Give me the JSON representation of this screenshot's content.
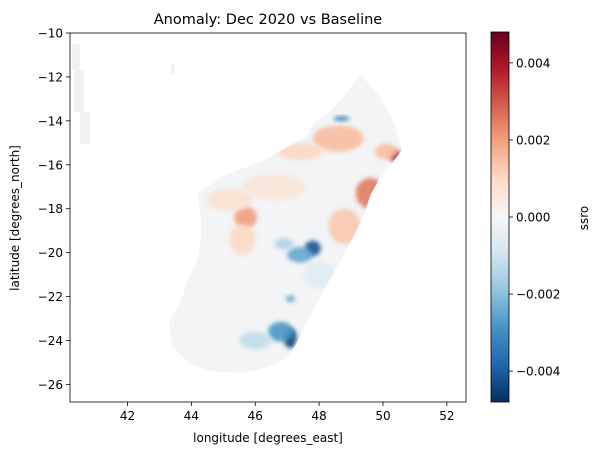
{
  "chart_data": {
    "type": "heatmap",
    "title": "Anomaly: Dec 2020 vs Baseline",
    "xlabel": "longitude [degrees_east]",
    "ylabel": "latitude [degrees_north]",
    "xlim": [
      40.2,
      52.6
    ],
    "ylim": [
      -26.8,
      -10.0
    ],
    "x_ticks": [
      "42",
      "44",
      "46",
      "48",
      "50",
      "52"
    ],
    "x_tick_values": [
      42,
      44,
      46,
      48,
      50,
      52
    ],
    "y_ticks": [
      "−10",
      "−12",
      "−14",
      "−16",
      "−18",
      "−20",
      "−22",
      "−24",
      "−26"
    ],
    "y_tick_values": [
      -10,
      -12,
      -14,
      -16,
      -18,
      -20,
      -22,
      -24,
      -26
    ],
    "colorbar": {
      "label": "ssro",
      "colormap": "RdBu_r",
      "range": [
        -0.0048,
        0.0048
      ],
      "ticks": [
        "0.004",
        "0.002",
        "0.000",
        "−0.002",
        "−0.004"
      ],
      "tick_values": [
        0.004,
        0.002,
        0.0,
        -0.002,
        -0.004
      ]
    },
    "grid": false,
    "land_outline_lonlat": [
      [
        49.3,
        -11.9
      ],
      [
        49.8,
        -12.7
      ],
      [
        50.3,
        -13.9
      ],
      [
        50.6,
        -15.3
      ],
      [
        50.3,
        -15.9
      ],
      [
        49.9,
        -16.6
      ],
      [
        49.6,
        -17.4
      ],
      [
        49.4,
        -18.3
      ],
      [
        49.1,
        -19.2
      ],
      [
        48.7,
        -20.3
      ],
      [
        48.3,
        -21.3
      ],
      [
        47.9,
        -22.4
      ],
      [
        47.6,
        -23.2
      ],
      [
        47.3,
        -24.1
      ],
      [
        47.0,
        -24.8
      ],
      [
        46.4,
        -25.2
      ],
      [
        45.6,
        -25.5
      ],
      [
        44.6,
        -25.4
      ],
      [
        44.0,
        -25.1
      ],
      [
        43.4,
        -24.3
      ],
      [
        43.3,
        -23.2
      ],
      [
        43.7,
        -22.1
      ],
      [
        43.9,
        -21.2
      ],
      [
        44.2,
        -20.3
      ],
      [
        44.3,
        -19.3
      ],
      [
        44.3,
        -18.4
      ],
      [
        44.2,
        -17.3
      ],
      [
        45.0,
        -16.5
      ],
      [
        46.1,
        -15.9
      ],
      [
        47.0,
        -15.2
      ],
      [
        47.6,
        -14.7
      ],
      [
        47.9,
        -14.0
      ],
      [
        48.4,
        -13.5
      ],
      [
        48.7,
        -13.0
      ]
    ],
    "anomaly_patches": [
      {
        "lon": 47.8,
        "lat": -19.8,
        "value": -0.0042,
        "rx": 0.25,
        "ry": 0.35
      },
      {
        "lon": 47.4,
        "lat": -20.1,
        "value": -0.0025,
        "rx": 0.4,
        "ry": 0.35
      },
      {
        "lon": 46.9,
        "lat": -19.6,
        "value": -0.0015,
        "rx": 0.3,
        "ry": 0.25
      },
      {
        "lon": 47.1,
        "lat": -23.9,
        "value": -0.0045,
        "rx": 0.2,
        "ry": 0.45
      },
      {
        "lon": 46.8,
        "lat": -23.6,
        "value": -0.0028,
        "rx": 0.4,
        "ry": 0.45
      },
      {
        "lon": 47.6,
        "lat": -24.2,
        "value": -0.002,
        "rx": 0.35,
        "ry": 0.4
      },
      {
        "lon": 46.0,
        "lat": -24.0,
        "value": -0.0012,
        "rx": 0.5,
        "ry": 0.4
      },
      {
        "lon": 47.1,
        "lat": -22.1,
        "value": -0.0025,
        "rx": 0.15,
        "ry": 0.15
      },
      {
        "lon": 48.7,
        "lat": -13.9,
        "value": -0.0035,
        "rx": 0.25,
        "ry": 0.1
      },
      {
        "lon": 50.4,
        "lat": -15.6,
        "value": 0.004,
        "rx": 0.2,
        "ry": 0.25
      },
      {
        "lon": 50.1,
        "lat": -15.4,
        "value": 0.0015,
        "rx": 0.35,
        "ry": 0.35
      },
      {
        "lon": 49.6,
        "lat": -17.3,
        "value": 0.0025,
        "rx": 0.45,
        "ry": 0.7
      },
      {
        "lon": 48.8,
        "lat": -18.8,
        "value": 0.0013,
        "rx": 0.5,
        "ry": 0.8
      },
      {
        "lon": 48.6,
        "lat": -14.8,
        "value": 0.0015,
        "rx": 0.8,
        "ry": 0.6
      },
      {
        "lon": 47.4,
        "lat": -15.4,
        "value": 0.001,
        "rx": 0.7,
        "ry": 0.4
      },
      {
        "lon": 45.7,
        "lat": -18.4,
        "value": 0.002,
        "rx": 0.35,
        "ry": 0.5
      },
      {
        "lon": 45.6,
        "lat": -19.4,
        "value": 0.001,
        "rx": 0.4,
        "ry": 0.7
      },
      {
        "lon": 45.2,
        "lat": -17.6,
        "value": 0.0008,
        "rx": 0.7,
        "ry": 0.5
      },
      {
        "lon": 46.6,
        "lat": -17.0,
        "value": 0.0006,
        "rx": 1.0,
        "ry": 0.6
      },
      {
        "lon": 48.0,
        "lat": -21.0,
        "value": -0.0006,
        "rx": 0.5,
        "ry": 0.6
      }
    ]
  }
}
